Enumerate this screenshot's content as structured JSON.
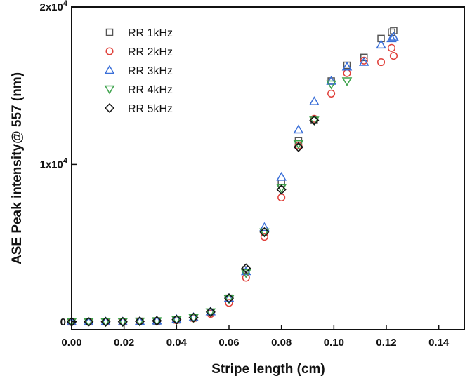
{
  "chart_data": {
    "type": "scatter",
    "xlabel": "Stripe length (cm)",
    "ylabel": "ASE Peak intensity@ 557 (nm)",
    "xlim": [
      0.0,
      0.15
    ],
    "ylim": [
      -500,
      20000
    ],
    "x_ticks": [
      0.0,
      0.02,
      0.04,
      0.06,
      0.08,
      0.1,
      0.12,
      0.14
    ],
    "x_tick_labels": [
      "0.00",
      "0.02",
      "0.04",
      "0.06",
      "0.08",
      "0.10",
      "0.12",
      "0.14"
    ],
    "y_ticks": [
      0,
      10000,
      20000
    ],
    "y_tick_labels": [
      {
        "base": "0",
        "exp": ""
      },
      {
        "base": "1x10",
        "exp": "4"
      },
      {
        "base": "2x10",
        "exp": "4"
      }
    ],
    "legend_position": "top-left",
    "grid": false,
    "series": [
      {
        "name": "RR 1kHz",
        "marker": "square",
        "color": "#555555",
        "points": [
          [
            0.0,
            0
          ],
          [
            0.0065,
            0
          ],
          [
            0.013,
            0
          ],
          [
            0.0195,
            0
          ],
          [
            0.026,
            30
          ],
          [
            0.0325,
            50
          ],
          [
            0.04,
            120
          ],
          [
            0.0465,
            250
          ],
          [
            0.053,
            600
          ],
          [
            0.06,
            1500
          ],
          [
            0.0665,
            3300
          ],
          [
            0.0735,
            5700
          ],
          [
            0.08,
            8800
          ],
          [
            0.0865,
            11500
          ],
          [
            0.0925,
            12800
          ],
          [
            0.099,
            15300
          ],
          [
            0.105,
            16300
          ],
          [
            0.1115,
            16800
          ],
          [
            0.118,
            18000
          ],
          [
            0.122,
            18400
          ],
          [
            0.1228,
            18500
          ]
        ]
      },
      {
        "name": "RR 2kHz",
        "marker": "circle",
        "color": "#e0403a",
        "points": [
          [
            0.0,
            0
          ],
          [
            0.0065,
            0
          ],
          [
            0.013,
            0
          ],
          [
            0.0195,
            0
          ],
          [
            0.026,
            20
          ],
          [
            0.0325,
            40
          ],
          [
            0.04,
            100
          ],
          [
            0.0465,
            220
          ],
          [
            0.053,
            500
          ],
          [
            0.06,
            1200
          ],
          [
            0.0665,
            2800
          ],
          [
            0.0735,
            5400
          ],
          [
            0.08,
            7900
          ],
          [
            0.0865,
            11200
          ],
          [
            0.0925,
            12900
          ],
          [
            0.099,
            14500
          ],
          [
            0.105,
            15800
          ],
          [
            0.1115,
            16600
          ],
          [
            0.118,
            16500
          ],
          [
            0.122,
            17400
          ],
          [
            0.1228,
            16900
          ]
        ]
      },
      {
        "name": "RR 3kHz",
        "marker": "triangle-up",
        "color": "#3a6fd8",
        "points": [
          [
            0.0,
            0
          ],
          [
            0.0065,
            0
          ],
          [
            0.013,
            0
          ],
          [
            0.0195,
            0
          ],
          [
            0.026,
            30
          ],
          [
            0.0325,
            60
          ],
          [
            0.04,
            150
          ],
          [
            0.0465,
            280
          ],
          [
            0.053,
            650
          ],
          [
            0.06,
            1500
          ],
          [
            0.0665,
            3200
          ],
          [
            0.0735,
            6000
          ],
          [
            0.08,
            9200
          ],
          [
            0.0865,
            12200
          ],
          [
            0.0925,
            14000
          ],
          [
            0.099,
            15300
          ],
          [
            0.105,
            16200
          ],
          [
            0.1115,
            16500
          ],
          [
            0.118,
            17600
          ],
          [
            0.122,
            18000
          ],
          [
            0.1228,
            18100
          ]
        ]
      },
      {
        "name": "RR 4kHz",
        "marker": "triangle-down",
        "color": "#3fa34d",
        "points": [
          [
            0.0,
            0
          ],
          [
            0.0065,
            0
          ],
          [
            0.013,
            0
          ],
          [
            0.0195,
            0
          ],
          [
            0.026,
            30
          ],
          [
            0.0325,
            50
          ],
          [
            0.04,
            130
          ],
          [
            0.0465,
            260
          ],
          [
            0.053,
            620
          ],
          [
            0.06,
            1450
          ],
          [
            0.0665,
            3100
          ],
          [
            0.0735,
            5700
          ],
          [
            0.08,
            8500
          ],
          [
            0.0865,
            11300
          ],
          [
            0.0925,
            12800
          ],
          [
            0.099,
            15100
          ],
          [
            0.105,
            15300
          ]
        ]
      },
      {
        "name": "RR 5kHz",
        "marker": "diamond",
        "color": "#111111",
        "points": [
          [
            0.0,
            0
          ],
          [
            0.0065,
            0
          ],
          [
            0.013,
            0
          ],
          [
            0.0195,
            0
          ],
          [
            0.026,
            30
          ],
          [
            0.0325,
            60
          ],
          [
            0.04,
            140
          ],
          [
            0.0465,
            270
          ],
          [
            0.053,
            620
          ],
          [
            0.06,
            1500
          ],
          [
            0.0665,
            3400
          ],
          [
            0.0735,
            5700
          ],
          [
            0.08,
            8400
          ],
          [
            0.0865,
            11100
          ],
          [
            0.0925,
            12800
          ]
        ]
      }
    ]
  }
}
